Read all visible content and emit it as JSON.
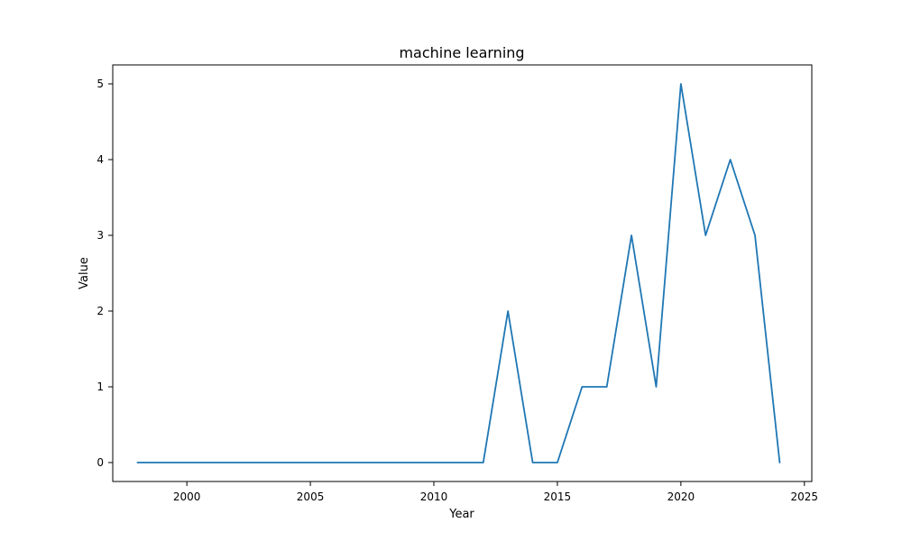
{
  "chart_data": {
    "type": "line",
    "title": "machine learning",
    "xlabel": "Year",
    "ylabel": "Value",
    "xlim": [
      1997,
      2025.3
    ],
    "ylim": [
      -0.25,
      5.25
    ],
    "x_ticks": [
      2000,
      2005,
      2010,
      2015,
      2020,
      2025
    ],
    "y_ticks": [
      0,
      1,
      2,
      3,
      4,
      5
    ],
    "grid": false,
    "legend": "none",
    "series": [
      {
        "color": "#1f77b4",
        "x": [
          1998,
          1999,
          2000,
          2001,
          2002,
          2003,
          2004,
          2005,
          2006,
          2007,
          2008,
          2009,
          2010,
          2011,
          2012,
          2013,
          2014,
          2015,
          2016,
          2017,
          2018,
          2019,
          2020,
          2021,
          2022,
          2023,
          2024
        ],
        "values": [
          0,
          0,
          0,
          0,
          0,
          0,
          0,
          0,
          0,
          0,
          0,
          0,
          0,
          0,
          0,
          2,
          0,
          0,
          1,
          1,
          3,
          1,
          5,
          3,
          4,
          3,
          0
        ]
      }
    ]
  }
}
